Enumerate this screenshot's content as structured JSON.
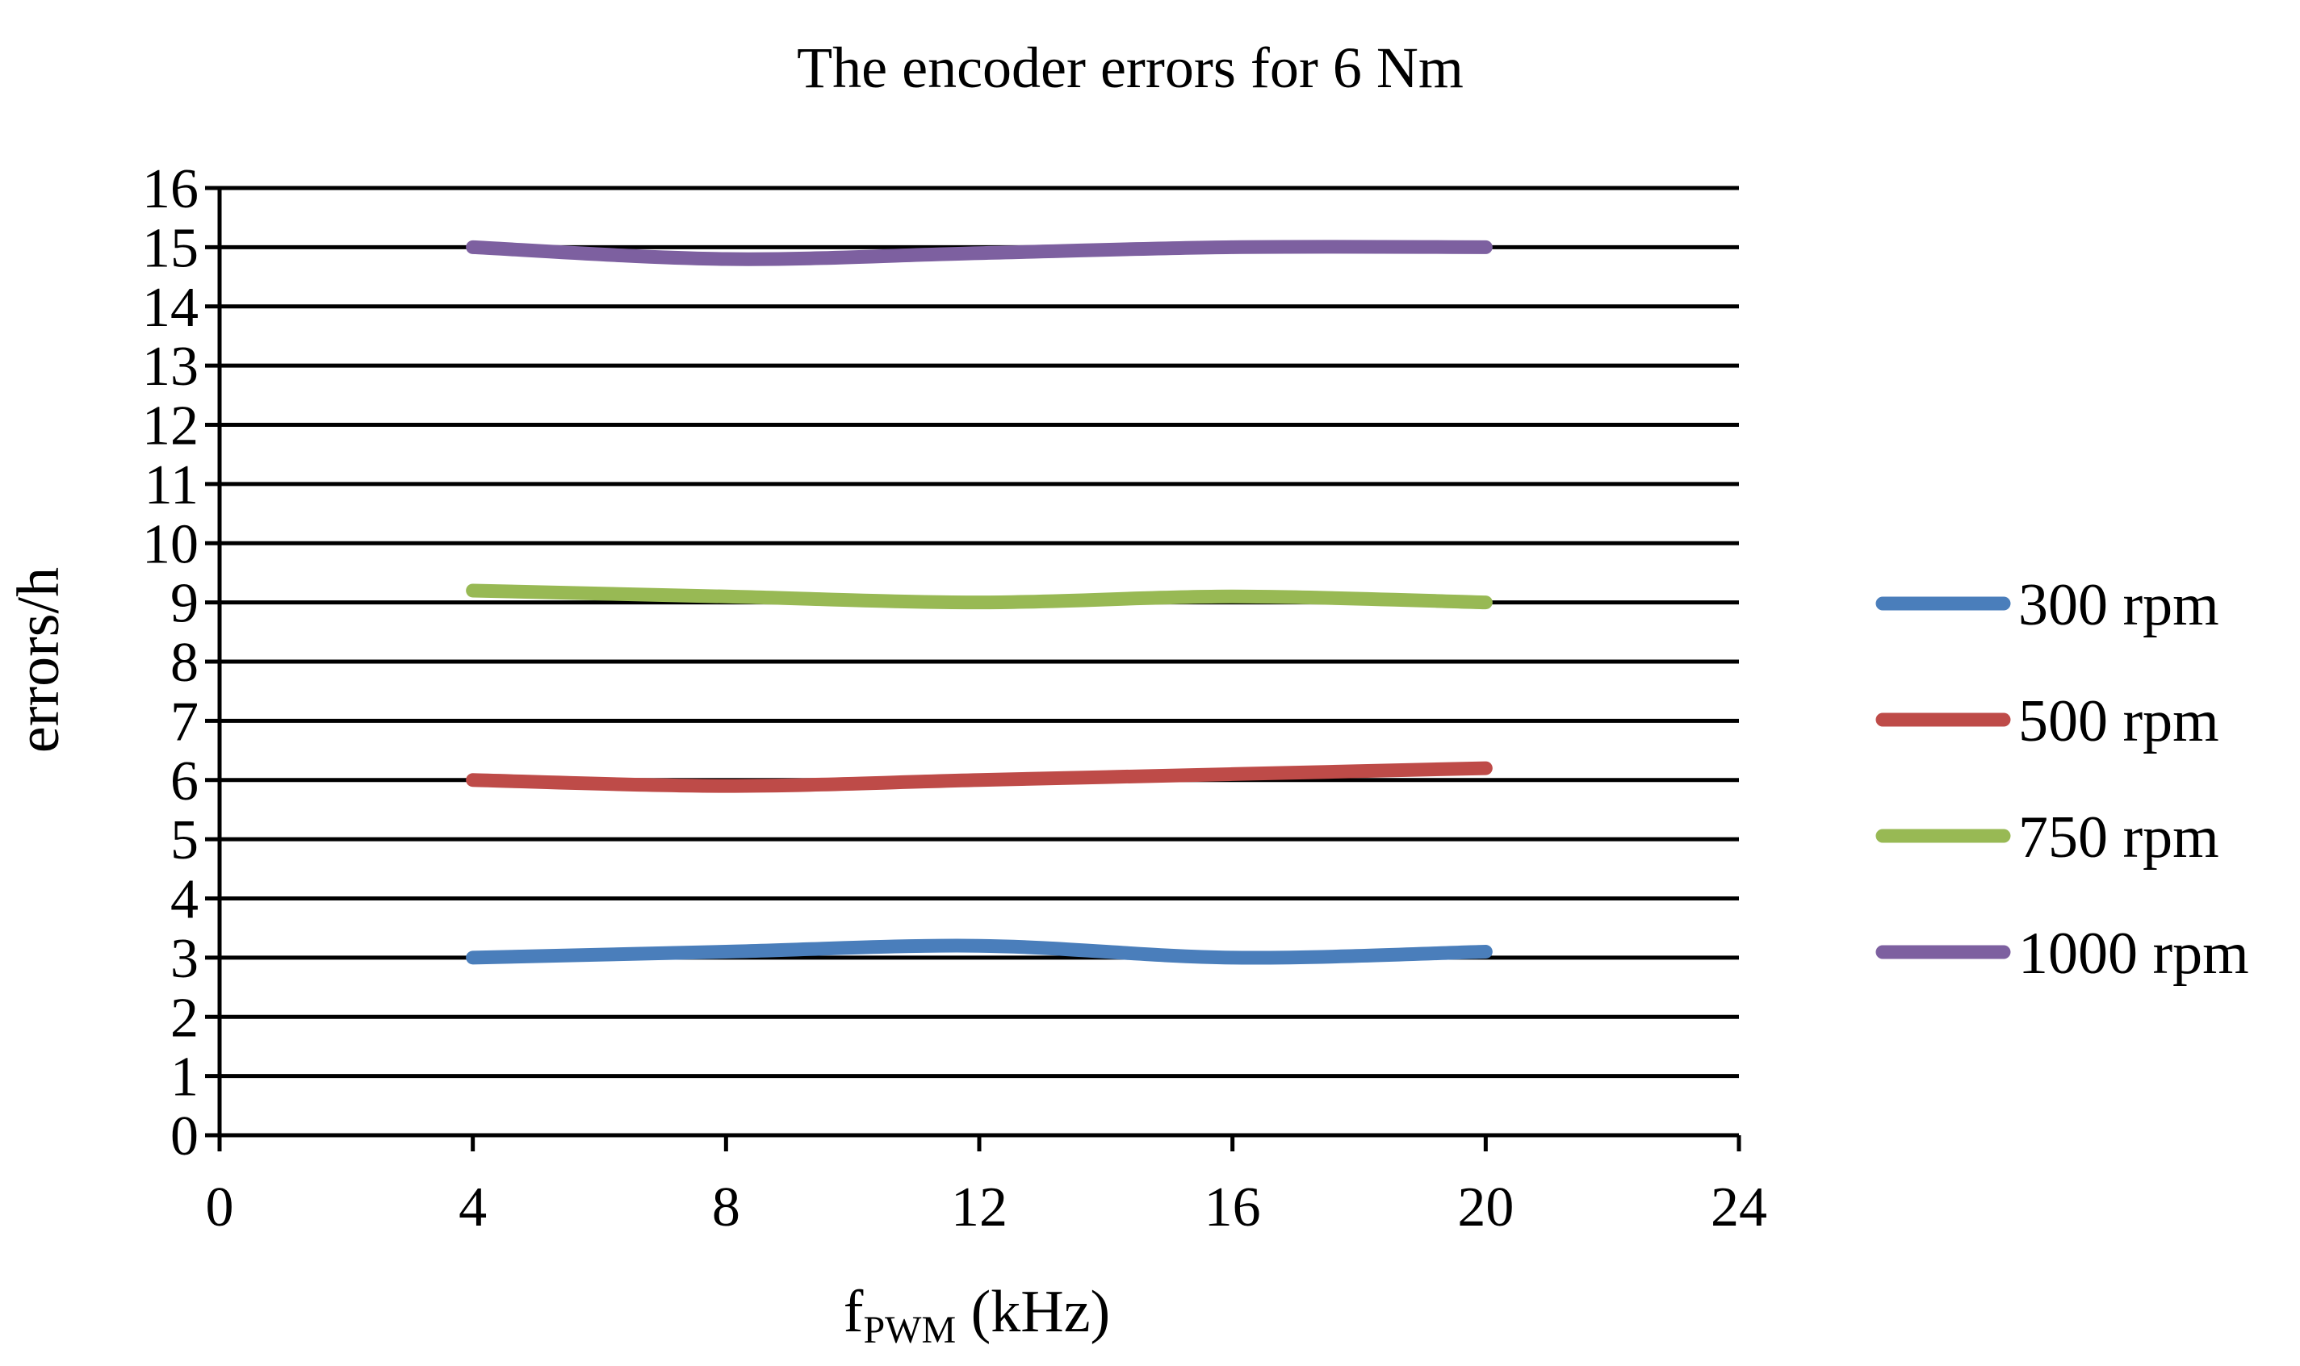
{
  "chart_data": {
    "type": "line",
    "title": "The encoder errors for 6 Nm",
    "xlabel": {
      "main": "f",
      "subscript": "PWM",
      "suffix": " (kHz)"
    },
    "ylabel": "errors/h",
    "xlim": [
      0,
      24
    ],
    "ylim": [
      0,
      16
    ],
    "xticks": [
      0,
      4,
      8,
      12,
      16,
      20,
      24
    ],
    "yticks": [
      0,
      1,
      2,
      3,
      4,
      5,
      6,
      7,
      8,
      9,
      10,
      11,
      12,
      13,
      14,
      15,
      16
    ],
    "x": [
      4,
      8,
      12,
      16,
      20
    ],
    "grid": "horizontal",
    "smooth": true,
    "legend_position": "right",
    "series": [
      {
        "name": "300 rpm",
        "color": "#4a7ebb",
        "values": [
          3,
          3.1,
          3.2,
          3,
          3.1
        ]
      },
      {
        "name": "500 rpm",
        "color": "#be4b48",
        "values": [
          6,
          5.9,
          6,
          6.1,
          6.2
        ]
      },
      {
        "name": "750 rpm",
        "color": "#98b954",
        "values": [
          9.2,
          9.1,
          9,
          9.1,
          9
        ]
      },
      {
        "name": "1000 rpm",
        "color": "#7d60a0",
        "values": [
          15,
          14.8,
          14.9,
          15,
          15
        ]
      }
    ]
  }
}
